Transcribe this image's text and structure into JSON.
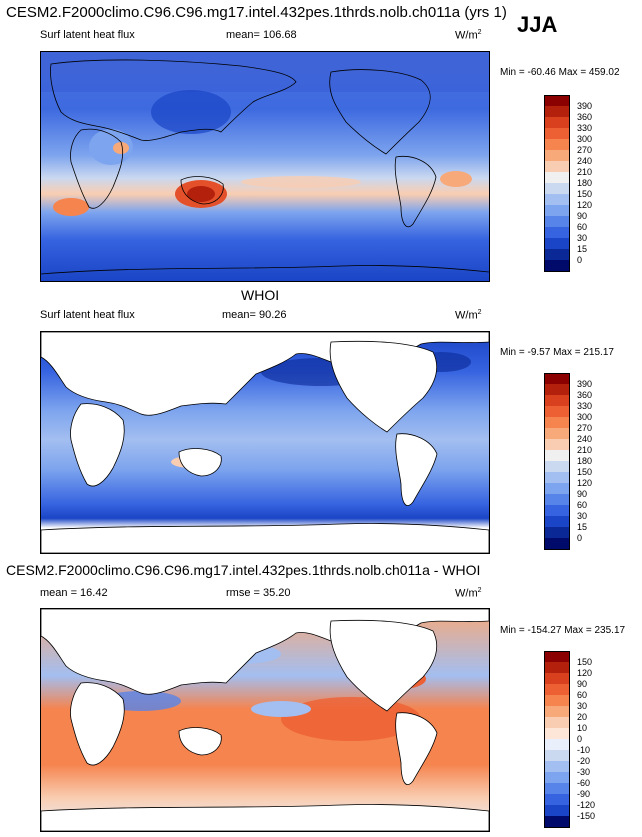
{
  "header": {
    "title": "CESM2.F2000climo.C96.C96.mg17.intel.432pes.1thrds.nolb.ch011a (yrs 1)",
    "season": "JJA"
  },
  "panels": [
    {
      "id": "model",
      "variable": "Surf latent heat flux",
      "mean": "mean= 106.68",
      "units": "W/m",
      "units_sup": "2",
      "minmax": "Min = -60.46 Max = 459.02",
      "colorbar_labels": [
        "390",
        "360",
        "330",
        "300",
        "270",
        "240",
        "210",
        "180",
        "150",
        "120",
        "90",
        "60",
        "30",
        "15",
        "0"
      ],
      "colorbar_colors": [
        "#8b0000",
        "#b3200c",
        "#d8401e",
        "#ed6033",
        "#f5844f",
        "#f7a97a",
        "#f9cdb1",
        "#f0f0f0",
        "#cad8f0",
        "#a3bef0",
        "#7da4ee",
        "#5784e8",
        "#3663e0",
        "#1a45c6",
        "#0a2896",
        "#000a6a"
      ]
    },
    {
      "id": "obs",
      "title": "WHOI",
      "variable": "Surf latent heat flux",
      "mean": "mean=  90.26",
      "units": "W/m",
      "units_sup": "2",
      "minmax": "Min = -9.57 Max = 215.17",
      "colorbar_labels": [
        "390",
        "360",
        "330",
        "300",
        "270",
        "240",
        "210",
        "180",
        "150",
        "120",
        "90",
        "60",
        "30",
        "15",
        "0"
      ],
      "colorbar_colors": [
        "#8b0000",
        "#b3200c",
        "#d8401e",
        "#ed6033",
        "#f5844f",
        "#f7a97a",
        "#f9cdb1",
        "#f0f0f0",
        "#cad8f0",
        "#a3bef0",
        "#7da4ee",
        "#5784e8",
        "#3663e0",
        "#1a45c6",
        "#0a2896",
        "#000a6a"
      ]
    },
    {
      "id": "diff",
      "title": "CESM2.F2000climo.C96.C96.mg17.intel.432pes.1thrds.nolb.ch011a - WHOI",
      "mean": "mean =  16.42",
      "rmse": "rmse =  35.20",
      "units": "W/m",
      "units_sup": "2",
      "minmax": "Min = -154.27 Max = 235.17",
      "colorbar_labels": [
        "150",
        "120",
        "90",
        "60",
        "30",
        "20",
        "10",
        "0",
        "-10",
        "-20",
        "-30",
        "-60",
        "-90",
        "-120",
        "-150"
      ],
      "colorbar_colors": [
        "#8b0000",
        "#b3200c",
        "#d8401e",
        "#ed6033",
        "#f5844f",
        "#f7a97a",
        "#f9cdb1",
        "#fde6d8",
        "#eaf0fb",
        "#cad8f0",
        "#a3bef0",
        "#7da4ee",
        "#5784e8",
        "#3663e0",
        "#1a45c6",
        "#000a6a"
      ]
    }
  ]
}
